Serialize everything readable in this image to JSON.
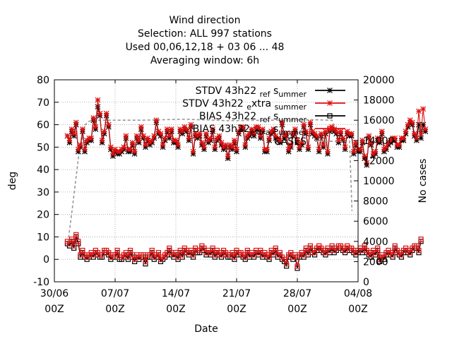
{
  "chart_data": {
    "type": "line",
    "title_lines": [
      "Wind direction",
      "Selection: ALL    997 stations",
      "Used  00,06,12,18  + 03 06 ... 48",
      "Averaging window:  6h"
    ],
    "xlabel": "Date",
    "ylabel": "deg",
    "y2label": "No cases",
    "x_ticks": [
      {
        "day": 0,
        "line1": "30/06",
        "line2": "00Z"
      },
      {
        "day": 7,
        "line1": "07/07",
        "line2": "00Z"
      },
      {
        "day": 14,
        "line1": "14/07",
        "line2": "00Z"
      },
      {
        "day": 21,
        "line1": "21/07",
        "line2": "00Z"
      },
      {
        "day": 28,
        "line1": "28/07",
        "line2": "00Z"
      },
      {
        "day": 35,
        "line1": "04/08",
        "line2": "00Z"
      }
    ],
    "xlim": [
      0,
      35
    ],
    "ylim": [
      -10,
      80
    ],
    "y_ticks": [
      -10,
      0,
      10,
      20,
      30,
      40,
      50,
      60,
      70,
      80
    ],
    "y2lim": [
      0,
      20000
    ],
    "y2_ticks": [
      0,
      2000,
      4000,
      6000,
      8000,
      10000,
      12000,
      14000,
      16000,
      18000,
      20000
    ],
    "grid": true,
    "legend_placement": "top-right",
    "x_start": 1.5,
    "x_step": 0.25,
    "series": [
      {
        "name": "STDV 43h22 ref summer",
        "legend_main": "STDV 43h22 ",
        "legend_sub": "ref",
        "legend_mid": " s",
        "legend_tail": "ummer",
        "color": "#000000",
        "marker": "star",
        "axis": "y",
        "values": [
          55,
          52,
          57,
          55,
          60,
          48,
          50,
          57,
          48,
          52,
          53,
          53,
          62,
          58,
          68,
          64,
          52,
          56,
          64,
          59,
          49,
          46,
          48,
          47,
          47,
          48,
          49,
          54,
          48,
          48,
          51,
          47,
          54,
          52,
          58,
          54,
          50,
          53,
          51,
          52,
          54,
          61,
          56,
          55,
          50,
          53,
          57,
          54,
          57,
          52,
          52,
          50,
          57,
          56,
          58,
          57,
          53,
          59,
          47,
          55,
          54,
          55,
          51,
          49,
          55,
          52,
          53,
          57,
          49,
          53,
          54,
          51,
          49,
          50,
          45,
          50,
          49,
          52,
          48,
          56,
          58,
          58,
          50,
          54,
          55,
          57,
          55,
          58,
          58,
          54,
          57,
          48,
          48,
          53,
          56,
          57,
          54,
          53,
          52,
          60,
          54,
          55,
          48,
          50,
          55,
          57,
          52,
          49,
          51,
          59,
          56,
          49,
          60,
          56,
          55,
          54,
          48,
          55,
          50,
          56,
          47,
          57,
          58,
          57,
          56,
          52,
          56,
          53,
          49,
          56,
          55,
          55,
          47,
          51,
          48,
          48,
          52,
          45,
          42,
          54,
          51,
          46,
          47,
          53,
          52,
          56,
          48,
          49,
          51,
          52,
          53,
          53,
          50,
          50,
          53,
          53,
          56,
          59,
          61,
          60,
          55,
          53,
          60,
          54,
          60,
          57
        ]
      },
      {
        "name": "STDV 43h22 extra summer",
        "legend_main": "STDV 43h22 ",
        "legend_sub": "e",
        "legend_mid": "xtra ",
        "legend_tail": "summer",
        "color": "#e01010",
        "marker": "star",
        "axis": "y",
        "values": [
          55,
          53,
          58,
          56,
          61,
          49,
          51,
          58,
          49,
          53,
          54,
          54,
          63,
          59,
          71,
          65,
          53,
          57,
          65,
          60,
          50,
          47,
          49,
          48,
          48,
          49,
          50,
          55,
          49,
          49,
          52,
          48,
          55,
          53,
          59,
          55,
          51,
          54,
          52,
          53,
          55,
          62,
          57,
          56,
          51,
          54,
          58,
          55,
          58,
          53,
          53,
          51,
          58,
          57,
          59,
          58,
          54,
          60,
          48,
          56,
          55,
          56,
          52,
          50,
          56,
          53,
          54,
          58,
          50,
          54,
          55,
          52,
          50,
          51,
          46,
          51,
          50,
          53,
          49,
          57,
          59,
          59,
          51,
          55,
          56,
          58,
          56,
          59,
          59,
          55,
          58,
          49,
          49,
          54,
          57,
          58,
          55,
          54,
          53,
          61,
          55,
          56,
          49,
          51,
          56,
          58,
          53,
          50,
          52,
          60,
          57,
          50,
          61,
          57,
          56,
          55,
          49,
          56,
          51,
          57,
          48,
          58,
          59,
          58,
          57,
          53,
          57,
          54,
          50,
          57,
          56,
          56,
          48,
          52,
          49,
          49,
          53,
          46,
          43,
          55,
          52,
          47,
          48,
          54,
          53,
          57,
          49,
          50,
          52,
          53,
          54,
          54,
          51,
          51,
          54,
          54,
          57,
          60,
          62,
          61,
          56,
          54,
          66,
          56,
          67,
          58
        ]
      },
      {
        "name": "BIAS 43h22 ref summer",
        "legend_main": "BIAS 43h22 ",
        "legend_sub": "ref",
        "legend_mid": " s",
        "legend_tail": "ummer",
        "color": "#000000",
        "marker": "box",
        "axis": "y",
        "values": [
          7,
          6,
          8,
          5,
          10,
          7,
          1,
          3,
          1,
          0,
          1,
          2,
          1,
          3,
          2,
          1,
          1,
          3,
          3,
          2,
          0,
          1,
          1,
          3,
          0,
          0,
          1,
          2,
          0,
          3,
          1,
          -1,
          1,
          0,
          1,
          1,
          -2,
          1,
          1,
          3,
          0,
          1,
          2,
          -1,
          0,
          1,
          2,
          4,
          2,
          1,
          2,
          0,
          3,
          1,
          4,
          3,
          2,
          3,
          1,
          4,
          3,
          3,
          5,
          4,
          2,
          3,
          2,
          4,
          1,
          3,
          2,
          1,
          3,
          2,
          1,
          1,
          2,
          0,
          3,
          2,
          2,
          1,
          0,
          3,
          1,
          2,
          1,
          3,
          2,
          3,
          1,
          2,
          1,
          0,
          3,
          2,
          4,
          1,
          2,
          0,
          -1,
          -3,
          1,
          2,
          0,
          1,
          -4,
          1,
          2,
          1,
          4,
          2,
          5,
          3,
          2,
          4,
          5,
          4,
          3,
          2,
          4,
          3,
          5,
          3,
          4,
          5,
          5,
          4,
          3,
          5,
          4,
          4,
          3,
          2,
          3,
          4,
          3,
          5,
          3,
          2,
          1,
          3,
          2,
          4,
          -1,
          1,
          0,
          2,
          3,
          2,
          1,
          5,
          3,
          2,
          1,
          3,
          4,
          3,
          2,
          4,
          5,
          5,
          3,
          8
        ]
      },
      {
        "name": "BIAS 43h22 extra summer",
        "legend_main": "BIAS 43h22",
        "legend_sub": "extra",
        "legend_mid": " s",
        "legend_tail": "ummer",
        "color": "#e01010",
        "marker": "box",
        "axis": "y",
        "values": [
          8,
          7,
          9,
          6,
          11,
          8,
          2,
          4,
          2,
          1,
          2,
          3,
          2,
          4,
          3,
          2,
          2,
          4,
          4,
          3,
          1,
          2,
          2,
          4,
          1,
          1,
          2,
          3,
          1,
          4,
          2,
          0,
          2,
          1,
          2,
          2,
          -1,
          2,
          2,
          4,
          1,
          2,
          3,
          0,
          1,
          2,
          3,
          5,
          3,
          2,
          3,
          1,
          4,
          2,
          5,
          4,
          3,
          4,
          2,
          5,
          4,
          4,
          6,
          5,
          3,
          4,
          3,
          5,
          2,
          4,
          3,
          2,
          4,
          3,
          2,
          2,
          3,
          1,
          4,
          3,
          3,
          2,
          1,
          4,
          2,
          3,
          2,
          4,
          3,
          4,
          2,
          3,
          2,
          1,
          4,
          3,
          5,
          2,
          3,
          1,
          0,
          -2,
          2,
          3,
          1,
          2,
          -3,
          2,
          3,
          2,
          5,
          3,
          6,
          4,
          3,
          5,
          6,
          5,
          4,
          3,
          5,
          4,
          6,
          4,
          5,
          6,
          6,
          5,
          4,
          6,
          5,
          5,
          4,
          3,
          4,
          5,
          4,
          6,
          4,
          3,
          2,
          4,
          3,
          5,
          0,
          2,
          1,
          3,
          4,
          3,
          2,
          6,
          4,
          3,
          2,
          4,
          5,
          4,
          3,
          5,
          6,
          6,
          4,
          9
        ]
      },
      {
        "name": "CASES",
        "legend_main": "CASES",
        "legend_sub": "",
        "legend_mid": "",
        "legend_tail": "",
        "color": "#999999",
        "marker": "none",
        "axis": "y2",
        "x": [
          1.5,
          2.0,
          2.8,
          3.5,
          4.0,
          5.0,
          10.0,
          15.0,
          20.0,
          25.0,
          30.0,
          31.5,
          32.0,
          32.5,
          33.5,
          33.8,
          34.0,
          34.3
        ],
        "values": [
          3400,
          6800,
          12500,
          15500,
          15900,
          16000,
          16000,
          16100,
          15950,
          16000,
          16050,
          16000,
          16000,
          14600,
          14500,
          14500,
          14500,
          7000
        ]
      }
    ]
  }
}
